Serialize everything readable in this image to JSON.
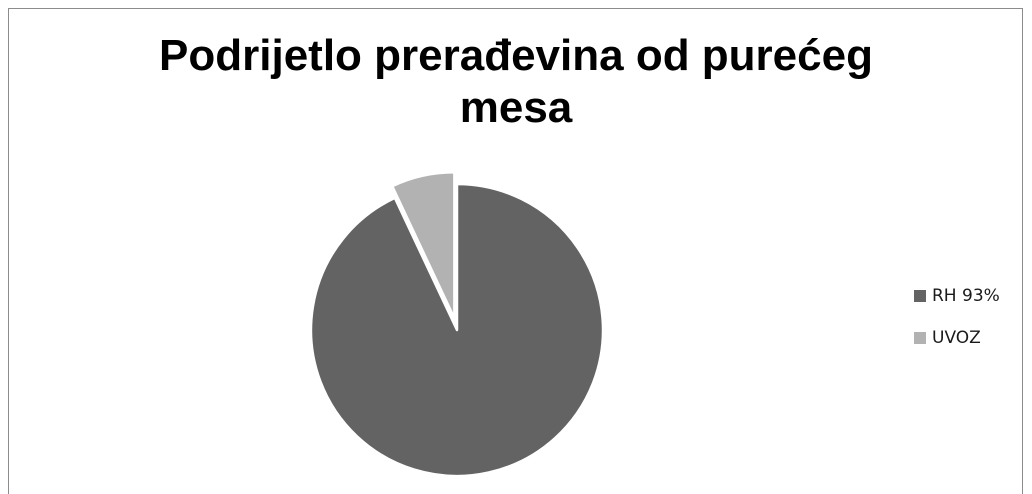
{
  "chart_data": {
    "type": "pie",
    "title_lines": [
      "Podrijetlo prerađevina od purećeg",
      "mesa"
    ],
    "slices": [
      {
        "label": "RH 93%",
        "value": 93,
        "color": "#636363"
      },
      {
        "label": "UVOZ",
        "value": 7,
        "color": "#b2b2b2"
      }
    ],
    "exploded_slice": "UVOZ",
    "legend_position": "right",
    "border_color": "#8c8c8c",
    "separator_color": "#ffffff"
  }
}
